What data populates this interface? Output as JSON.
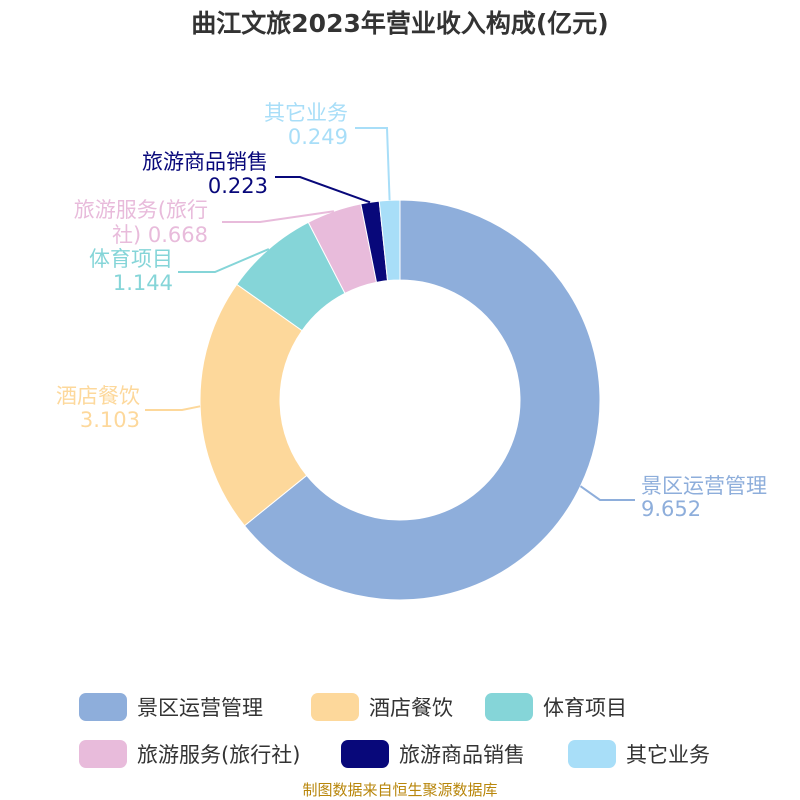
{
  "chart_data": {
    "type": "pie",
    "style": "donut",
    "title": "曲江文旅2023年营业收入构成(亿元)",
    "unit": "亿元",
    "slices": [
      {
        "name": "景区运营管理",
        "value": 9.652,
        "value_label": "9.652",
        "color": "#8eaedb"
      },
      {
        "name": "酒店餐饮",
        "value": 3.103,
        "value_label": "3.103",
        "color": "#fdd89b"
      },
      {
        "name": "体育项目",
        "value": 1.144,
        "value_label": "1.144",
        "color": "#85d5d8"
      },
      {
        "name": "旅游服务(旅行社)",
        "value": 0.668,
        "value_label": "0.668",
        "color": "#e8bbdb"
      },
      {
        "name": "旅游商品销售",
        "value": 0.223,
        "value_label": "0.223",
        "color": "#08087a"
      },
      {
        "name": "其它业务",
        "value": 0.249,
        "value_label": "0.249",
        "color": "#a8def8"
      }
    ],
    "legend_position": "bottom",
    "legend": [
      "景区运营管理",
      "酒店餐饮",
      "体育项目",
      "旅游服务(旅行社)",
      "旅游商品销售",
      "其它业务"
    ]
  },
  "source": "制图数据来自恒生聚源数据库"
}
